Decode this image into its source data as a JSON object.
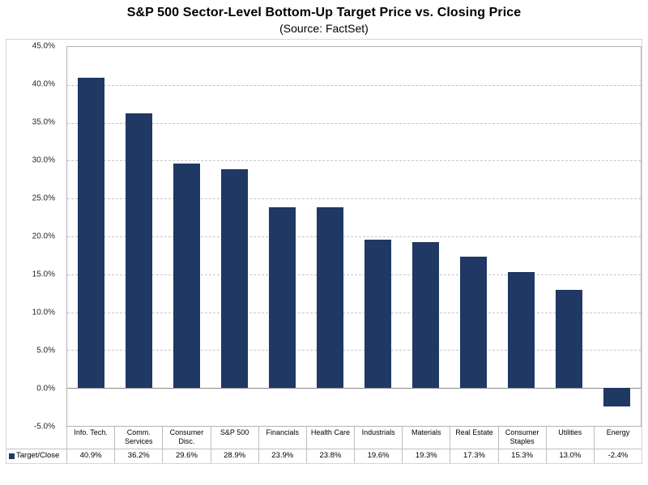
{
  "chart_data": {
    "type": "bar",
    "title": "S&P 500 Sector-Level Bottom-Up Target Price vs. Closing Price",
    "subtitle": "(Source: FactSet)",
    "categories": [
      "Info. Tech.",
      "Comm. Services",
      "Consumer Disc.",
      "S&P 500",
      "Financials",
      "Health Care",
      "Industrials",
      "Materials",
      "Real Estate",
      "Consumer Staples",
      "Utilities",
      "Energy"
    ],
    "series": [
      {
        "name": "Target/Close",
        "values": [
          40.9,
          36.2,
          29.6,
          28.9,
          23.9,
          23.8,
          19.6,
          19.3,
          17.3,
          15.3,
          13.0,
          -2.4
        ]
      }
    ],
    "value_labels": [
      "40.9%",
      "36.2%",
      "29.6%",
      "28.9%",
      "23.9%",
      "23.8%",
      "19.6%",
      "19.3%",
      "17.3%",
      "15.3%",
      "13.0%",
      "-2.4%"
    ],
    "ylim": [
      -5,
      45
    ],
    "ytick_step": 5,
    "ytick_labels": [
      "45.0%",
      "40.0%",
      "35.0%",
      "30.0%",
      "25.0%",
      "20.0%",
      "15.0%",
      "10.0%",
      "5.0%",
      "0.0%",
      "-5.0%"
    ],
    "grid": true,
    "bar_color": "#1F3864",
    "legend": {
      "label": "Target/Close",
      "marker_color": "#1F3864",
      "position": "bottom-table"
    }
  }
}
